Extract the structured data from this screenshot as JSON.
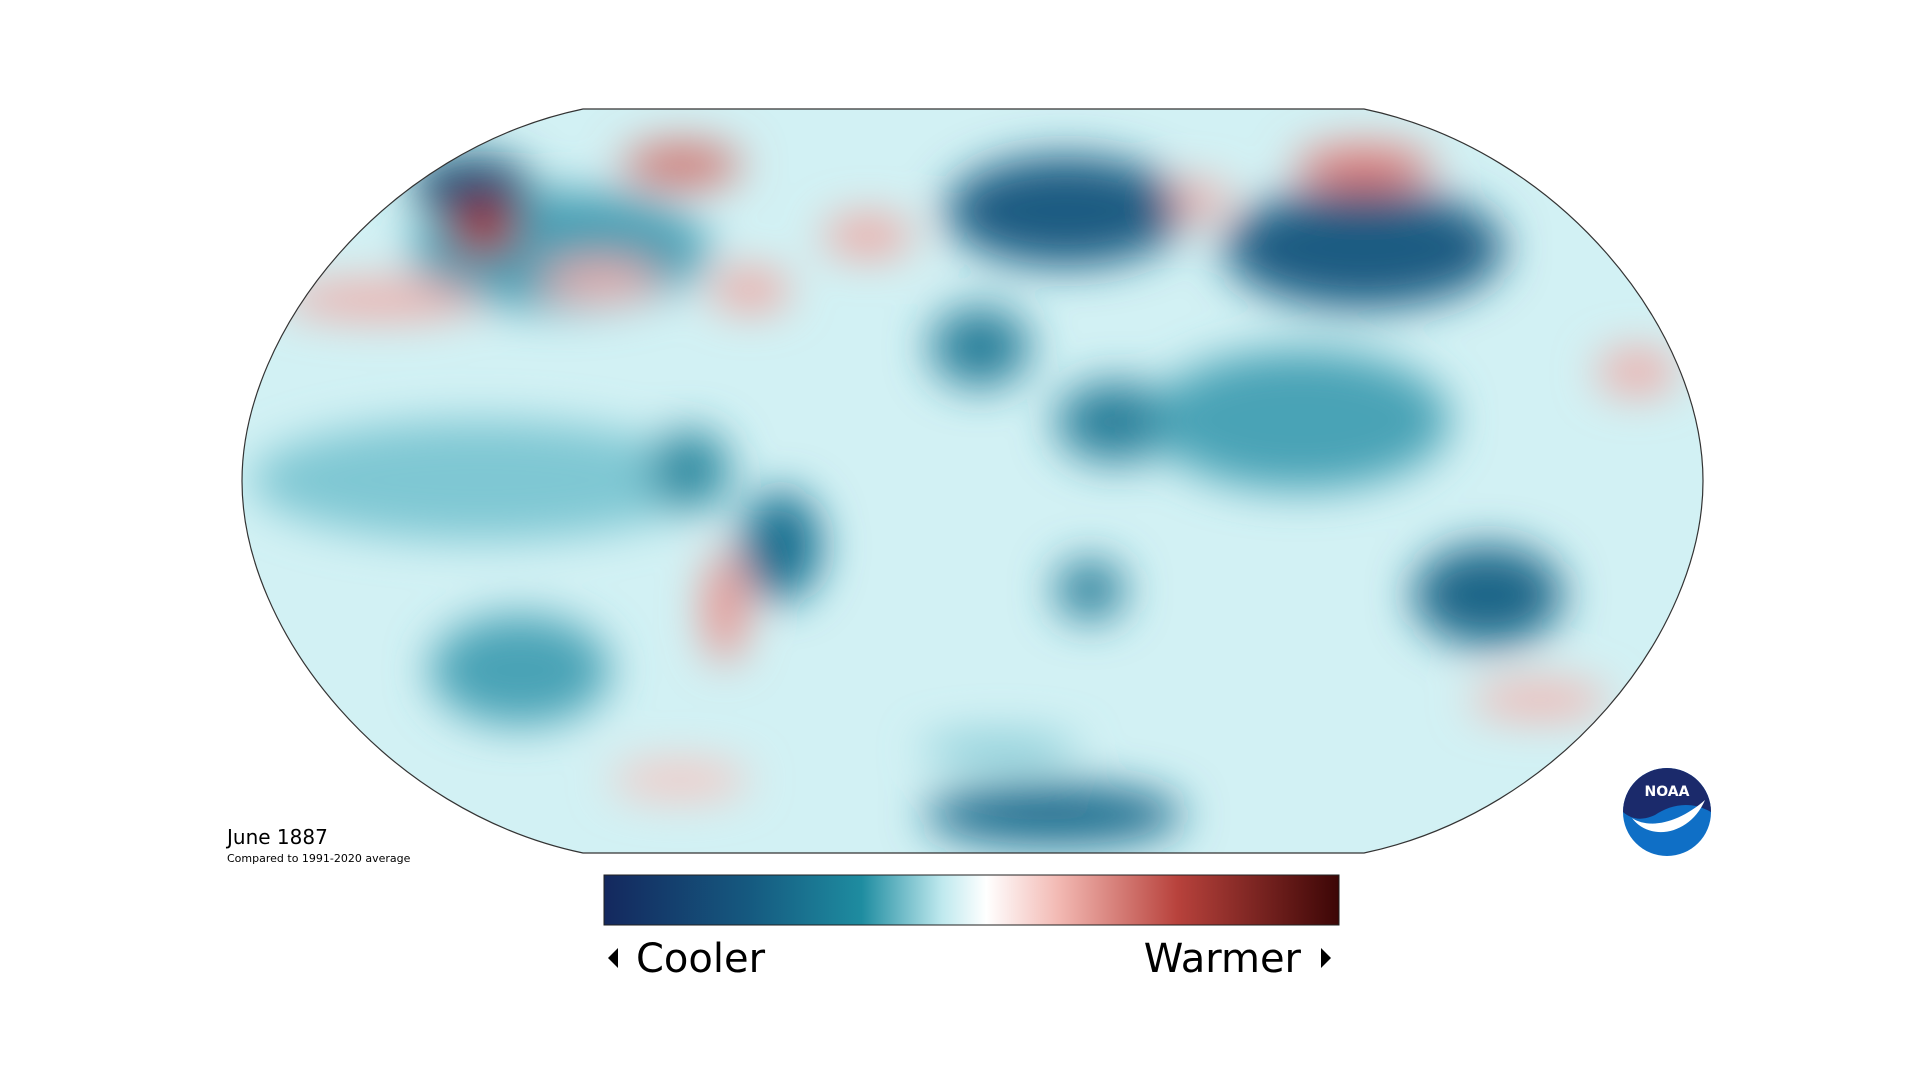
{
  "title": "June 1887",
  "subtitle": "Compared to 1991-2020 average",
  "legend": {
    "low": "Cooler",
    "high": "Warmer"
  },
  "logo": "NOAA"
}
